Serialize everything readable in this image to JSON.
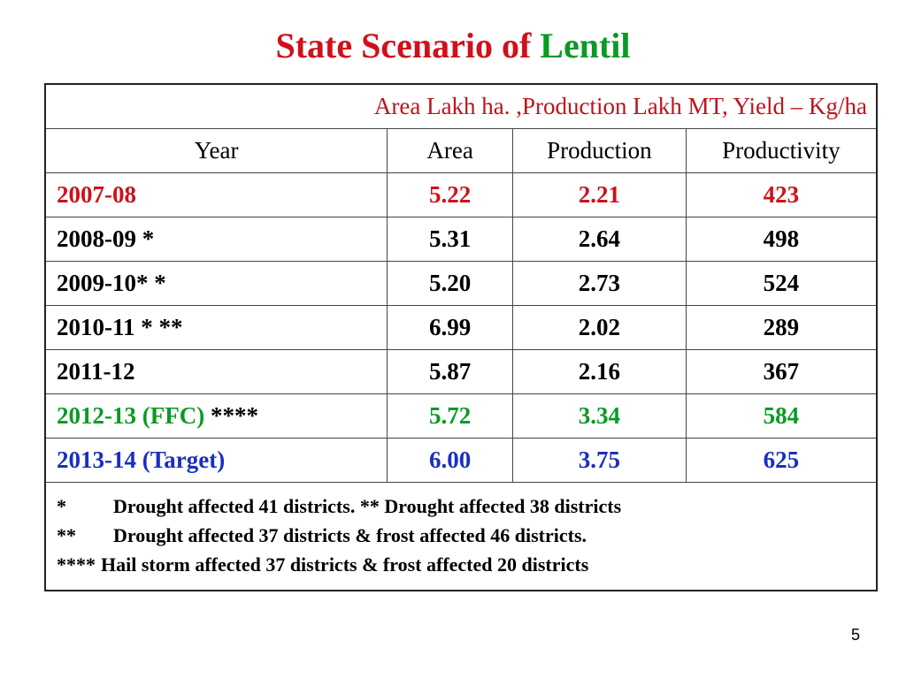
{
  "title": {
    "main": "State Scenario of ",
    "crop": "Lentil"
  },
  "colors": {
    "red": "#d0101a",
    "green": "#0a9a26",
    "blue": "#1a2fc0",
    "black": "#000000"
  },
  "units_line": "Area  Lakh ha. ,Production Lakh MT, Yield – Kg/ha",
  "headers": [
    "Year",
    "Area",
    "Production",
    "Productivity"
  ],
  "rows": [
    {
      "year": "2007-08",
      "area": "5.22",
      "production": "2.21",
      "productivity": "423",
      "color": "red"
    },
    {
      "year": "2008-09 *",
      "area": "5.31",
      "production": "2.64",
      "productivity": "498",
      "color": "black"
    },
    {
      "year": "2009-10* *",
      "area": "5.20",
      "production": "2.73",
      "productivity": "524",
      "color": "black"
    },
    {
      "year": "2010-11 * **",
      "area": "6.99",
      "production": "2.02",
      "productivity": "289",
      "color": "black"
    },
    {
      "year": "2011-12",
      "area": "5.87",
      "production": "2.16",
      "productivity": "367",
      "color": "black"
    },
    {
      "year": "2012-13 (FFC) ****",
      "area": "5.72",
      "production": "3.34",
      "productivity": "584",
      "color": "green"
    },
    {
      "year": "2013-14 (Target)",
      "area": "6.00",
      "production": "3.75",
      "productivity": "625",
      "color": "blue"
    }
  ],
  "notes": [
    {
      "key": "*",
      "text": "Drought affected 41 districts. ** Drought affected 38 districts"
    },
    {
      "key": "**",
      "text": "Drought affected 37 districts & frost affected 46 districts."
    },
    {
      "key": "****",
      "text": "Hail storm affected 37 districts & frost affected 20 districts"
    }
  ],
  "page_number": "5"
}
